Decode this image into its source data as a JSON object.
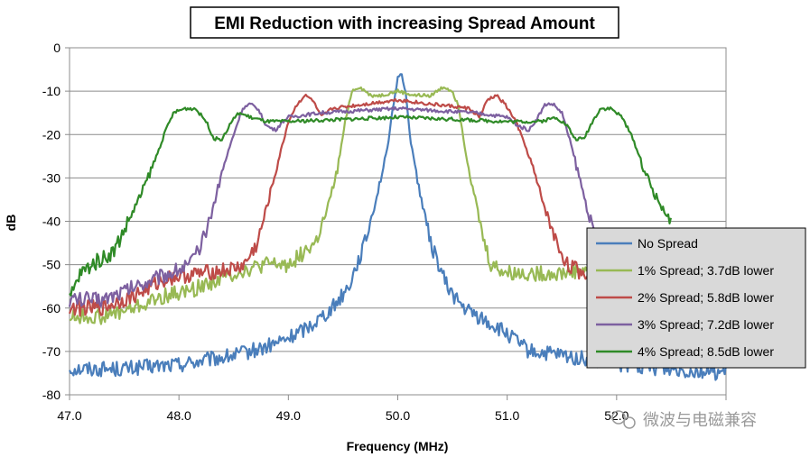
{
  "chart_data": {
    "type": "line",
    "title": "EMI Reduction with increasing Spread Amount",
    "xlabel": "Frequency (MHz)",
    "ylabel": "dB",
    "xlim": [
      47.0,
      53.0
    ],
    "ylim": [
      -80,
      0
    ],
    "grid": true,
    "legend_position": "right",
    "x_ticks": [
      "47.0",
      "48.0",
      "49.0",
      "50.0",
      "51.0",
      "52.0"
    ],
    "y_ticks": [
      "0",
      "-10",
      "-20",
      "-30",
      "-40",
      "-50",
      "-60",
      "-70",
      "-80"
    ],
    "series": [
      {
        "name": "No Spread",
        "color": "#4a7ebb",
        "points": [
          [
            47.0,
            -74
          ],
          [
            47.5,
            -74
          ],
          [
            48.0,
            -73
          ],
          [
            48.5,
            -71
          ],
          [
            48.8,
            -69
          ],
          [
            49.0,
            -67
          ],
          [
            49.2,
            -64
          ],
          [
            49.4,
            -60
          ],
          [
            49.55,
            -55
          ],
          [
            49.7,
            -45
          ],
          [
            49.8,
            -35
          ],
          [
            49.9,
            -24
          ],
          [
            49.95,
            -15
          ],
          [
            50.0,
            -7
          ],
          [
            50.03,
            -5.5
          ],
          [
            50.07,
            -10
          ],
          [
            50.12,
            -22
          ],
          [
            50.2,
            -33
          ],
          [
            50.3,
            -45
          ],
          [
            50.45,
            -55
          ],
          [
            50.6,
            -60
          ],
          [
            50.8,
            -63
          ],
          [
            51.0,
            -66
          ],
          [
            51.2,
            -70
          ],
          [
            51.5,
            -71
          ],
          [
            52.0,
            -73
          ],
          [
            52.5,
            -74
          ],
          [
            53.0,
            -75
          ]
        ]
      },
      {
        "name": "1% Spread; 3.7dB lower",
        "color": "#98b954",
        "points": [
          [
            47.0,
            -62
          ],
          [
            47.3,
            -62
          ],
          [
            47.6,
            -60
          ],
          [
            47.9,
            -57
          ],
          [
            48.1,
            -56
          ],
          [
            48.3,
            -54
          ],
          [
            48.5,
            -52
          ],
          [
            48.8,
            -50
          ],
          [
            49.0,
            -50
          ],
          [
            49.1,
            -48
          ],
          [
            49.25,
            -45
          ],
          [
            49.35,
            -38
          ],
          [
            49.45,
            -28
          ],
          [
            49.52,
            -17
          ],
          [
            49.58,
            -10
          ],
          [
            49.65,
            -9
          ],
          [
            49.75,
            -11
          ],
          [
            49.85,
            -11
          ],
          [
            50.0,
            -10
          ],
          [
            50.15,
            -11
          ],
          [
            50.3,
            -11
          ],
          [
            50.42,
            -9
          ],
          [
            50.5,
            -10
          ],
          [
            50.56,
            -14
          ],
          [
            50.62,
            -24
          ],
          [
            50.7,
            -34
          ],
          [
            50.78,
            -44
          ],
          [
            50.85,
            -50
          ],
          [
            51.0,
            -52
          ],
          [
            51.2,
            -52
          ],
          [
            51.5,
            -52
          ],
          [
            51.7,
            -51
          ],
          [
            51.85,
            -52
          ],
          [
            52.0,
            -53
          ]
        ]
      },
      {
        "name": "2% Spread; 5.8dB lower",
        "color": "#be4b48",
        "points": [
          [
            47.0,
            -60
          ],
          [
            47.3,
            -60
          ],
          [
            47.6,
            -57
          ],
          [
            47.9,
            -53
          ],
          [
            48.2,
            -52
          ],
          [
            48.5,
            -51
          ],
          [
            48.6,
            -50
          ],
          [
            48.72,
            -45
          ],
          [
            48.82,
            -35
          ],
          [
            48.92,
            -25
          ],
          [
            49.0,
            -17
          ],
          [
            49.08,
            -13
          ],
          [
            49.15,
            -11
          ],
          [
            49.22,
            -12
          ],
          [
            49.3,
            -16
          ],
          [
            49.4,
            -14
          ],
          [
            49.55,
            -13.5
          ],
          [
            49.7,
            -13
          ],
          [
            50.0,
            -12
          ],
          [
            50.3,
            -13
          ],
          [
            50.5,
            -13.5
          ],
          [
            50.65,
            -14
          ],
          [
            50.75,
            -16
          ],
          [
            50.82,
            -12
          ],
          [
            50.9,
            -11
          ],
          [
            50.98,
            -13
          ],
          [
            51.08,
            -17
          ],
          [
            51.2,
            -25
          ],
          [
            51.32,
            -35
          ],
          [
            51.45,
            -45
          ],
          [
            51.55,
            -50
          ],
          [
            51.7,
            -52
          ],
          [
            52.0,
            -53
          ]
        ]
      },
      {
        "name": "3% Spread; 7.2dB lower",
        "color": "#7d60a0",
        "points": [
          [
            47.0,
            -58
          ],
          [
            47.3,
            -58
          ],
          [
            47.6,
            -55
          ],
          [
            47.9,
            -52
          ],
          [
            48.1,
            -50
          ],
          [
            48.2,
            -46
          ],
          [
            48.3,
            -38
          ],
          [
            48.4,
            -28
          ],
          [
            48.5,
            -20
          ],
          [
            48.58,
            -14
          ],
          [
            48.65,
            -13
          ],
          [
            48.72,
            -14
          ],
          [
            48.8,
            -18
          ],
          [
            48.88,
            -19
          ],
          [
            48.95,
            -17
          ],
          [
            49.0,
            -16
          ],
          [
            49.3,
            -15
          ],
          [
            50.0,
            -14
          ],
          [
            50.7,
            -15
          ],
          [
            51.0,
            -16
          ],
          [
            51.1,
            -18
          ],
          [
            51.2,
            -19
          ],
          [
            51.28,
            -16
          ],
          [
            51.35,
            -13
          ],
          [
            51.42,
            -13
          ],
          [
            51.5,
            -15
          ],
          [
            51.58,
            -22
          ],
          [
            51.68,
            -32
          ],
          [
            51.78,
            -42
          ],
          [
            51.85,
            -48
          ],
          [
            52.0,
            -50
          ]
        ]
      },
      {
        "name": "4% Spread; 8.5dB lower",
        "color": "#2f8a27",
        "points": [
          [
            47.0,
            -58
          ],
          [
            47.1,
            -52
          ],
          [
            47.2,
            -50
          ],
          [
            47.4,
            -47
          ],
          [
            47.5,
            -42
          ],
          [
            47.65,
            -34
          ],
          [
            47.78,
            -26
          ],
          [
            47.88,
            -19
          ],
          [
            47.95,
            -15
          ],
          [
            48.05,
            -14
          ],
          [
            48.15,
            -14
          ],
          [
            48.25,
            -17
          ],
          [
            48.32,
            -21
          ],
          [
            48.4,
            -21
          ],
          [
            48.48,
            -17
          ],
          [
            48.55,
            -15
          ],
          [
            48.65,
            -16
          ],
          [
            48.8,
            -17
          ],
          [
            49.0,
            -17
          ],
          [
            49.5,
            -16.5
          ],
          [
            50.0,
            -16
          ],
          [
            50.5,
            -16.5
          ],
          [
            51.0,
            -17
          ],
          [
            51.3,
            -17
          ],
          [
            51.45,
            -16
          ],
          [
            51.55,
            -18
          ],
          [
            51.62,
            -21
          ],
          [
            51.7,
            -21
          ],
          [
            51.78,
            -17
          ],
          [
            51.85,
            -14
          ],
          [
            51.95,
            -14
          ],
          [
            52.05,
            -16
          ],
          [
            52.15,
            -21
          ],
          [
            52.25,
            -28
          ],
          [
            52.35,
            -34
          ],
          [
            52.45,
            -38
          ],
          [
            52.5,
            -41
          ]
        ]
      }
    ]
  },
  "watermark": "微波与电磁兼容"
}
